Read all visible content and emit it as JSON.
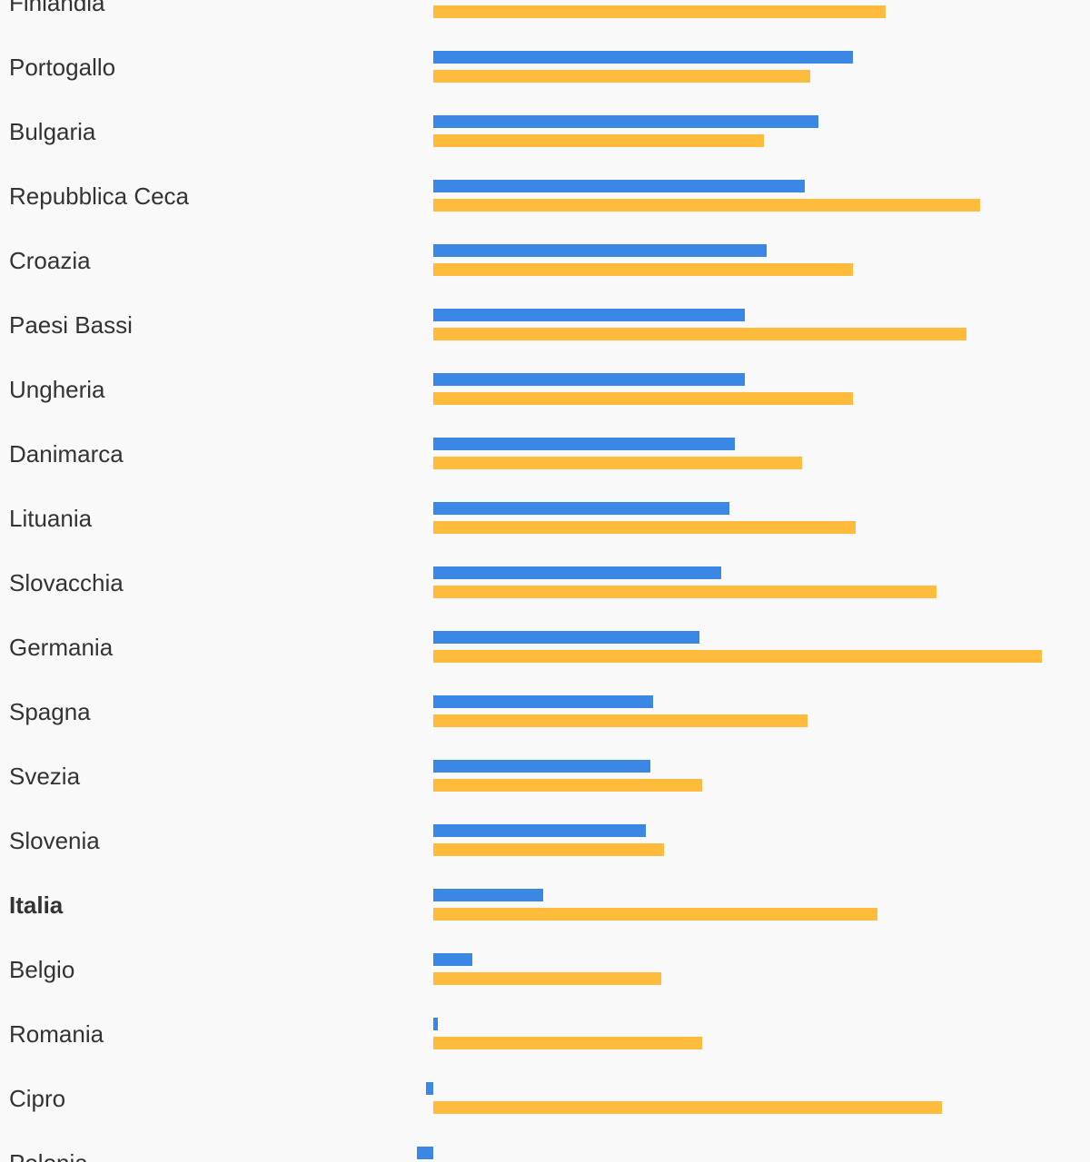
{
  "chart_data": {
    "type": "bar",
    "orientation": "horizontal",
    "categories": [
      "Finlandia",
      "Portogallo",
      "Bulgaria",
      "Repubblica Ceca",
      "Croazia",
      "Paesi Bassi",
      "Ungheria",
      "Danimarca",
      "Lituania",
      "Slovacchia",
      "Germania",
      "Spagna",
      "Svezia",
      "Slovenia",
      "Italia",
      "Belgio",
      "Romania",
      "Cipro",
      "Polonia"
    ],
    "highlight": "Italia",
    "series": [
      {
        "color": "#3a87e6",
        "values": [
          null,
          46.2,
          42.4,
          40.9,
          36.7,
          34.3,
          34.3,
          33.2,
          32.6,
          31.7,
          29.3,
          24.2,
          23.9,
          23.4,
          12.1,
          4.3,
          0.5,
          -0.8,
          -1.8
        ]
      },
      {
        "color": "#ffbb3b",
        "values": [
          49.8,
          41.5,
          36.4,
          60.2,
          46.2,
          58.7,
          46.2,
          40.6,
          46.5,
          55.4,
          67.0,
          41.2,
          29.6,
          25.4,
          48.9,
          25.1,
          29.6,
          56.0,
          null
        ]
      }
    ],
    "xlim": [
      -5,
      70
    ]
  }
}
